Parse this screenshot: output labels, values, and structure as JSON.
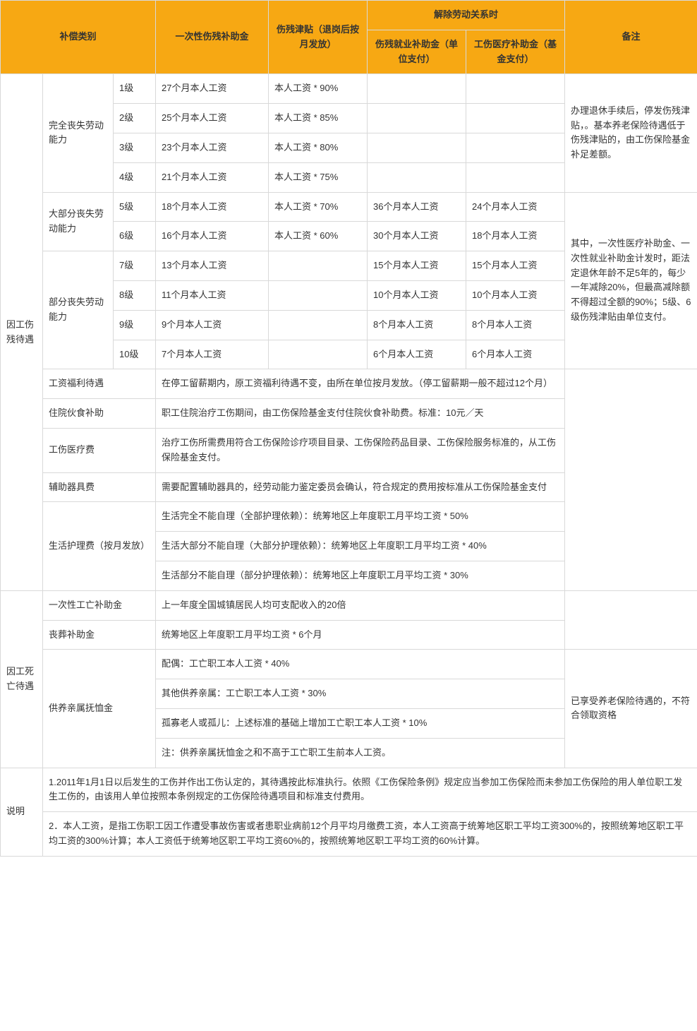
{
  "header": {
    "col1": "补偿类别",
    "col2": "一次性伤残补助金",
    "col3": "伤残津贴（退岗后按月发放）",
    "col4_group": "解除劳动关系时",
    "col4a": "伤残就业补助金（单位支付）",
    "col4b": "工伤医疗补助金（基金支付）",
    "col5": "备注"
  },
  "section1": {
    "title": "因工伤残待遇",
    "group1": {
      "name": "完全丧失劳动能力"
    },
    "group2": {
      "name": "大部分丧失劳动能力"
    },
    "group3": {
      "name": "部分丧失劳动能力"
    },
    "rows": {
      "r1": {
        "lv": "1级",
        "a": "27个月本人工资",
        "b": "本人工资 * 90%",
        "c": "",
        "d": ""
      },
      "r2": {
        "lv": "2级",
        "a": "25个月本人工资",
        "b": "本人工资 * 85%",
        "c": "",
        "d": ""
      },
      "r3": {
        "lv": "3级",
        "a": "23个月本人工资",
        "b": "本人工资 * 80%",
        "c": "",
        "d": ""
      },
      "r4": {
        "lv": "4级",
        "a": "21个月本人工资",
        "b": "本人工资 * 75%",
        "c": "",
        "d": ""
      },
      "r5": {
        "lv": "5级",
        "a": "18个月本人工资",
        "b": "本人工资 * 70%",
        "c": "36个月本人工资",
        "d": "24个月本人工资"
      },
      "r6": {
        "lv": "6级",
        "a": "16个月本人工资",
        "b": "本人工资 * 60%",
        "c": "30个月本人工资",
        "d": "18个月本人工资"
      },
      "r7": {
        "lv": "7级",
        "a": "13个月本人工资",
        "b": "",
        "c": "15个月本人工资",
        "d": "15个月本人工资"
      },
      "r8": {
        "lv": "8级",
        "a": "11个月本人工资",
        "b": "",
        "c": "10个月本人工资",
        "d": "10个月本人工资"
      },
      "r9": {
        "lv": "9级",
        "a": "9个月本人工资",
        "b": "",
        "c": "8个月本人工资",
        "d": "8个月本人工资"
      },
      "r10": {
        "lv": "10级",
        "a": "7个月本人工资",
        "b": "",
        "c": "6个月本人工资",
        "d": "6个月本人工资"
      }
    },
    "remark1": "办理退休手续后，停发伤残津贴，。基本养老保险待遇低于伤残津贴的，由工伤保险基金补足差额。",
    "remark2": "其中，一次性医疗补助金、一次性就业补助金计发时，距法定退休年龄不足5年的，每少一年减除20%，但最高减除额不得超过全额的90%；5级、6级伤残津贴由单位支付。",
    "extra": {
      "e1": {
        "label": "工资福利待遇",
        "text": "在停工留薪期内，原工资福利待遇不变，由所在单位按月发放。（停工留薪期一般不超过12个月）"
      },
      "e2": {
        "label": "住院伙食补助",
        "text": "职工住院治疗工伤期间，由工伤保险基金支付住院伙食补助费。标准：10元／天"
      },
      "e3": {
        "label": "工伤医疗费",
        "text": "治疗工伤所需费用符合工伤保险诊疗项目目录、工伤保险药品目录、工伤保险服务标准的，从工伤保险基金支付。"
      },
      "e4": {
        "label": "辅助器具费",
        "text": "需要配置辅助器具的，经劳动能力鉴定委员会确认，符合规定的费用按标准从工伤保险基金支付"
      },
      "e5": {
        "label": "生活护理费（按月发放）",
        "t1": "生活完全不能自理（全部护理依赖）：统筹地区上年度职工月平均工资 * 50%",
        "t2": "生活大部分不能自理（大部分护理依赖）：统筹地区上年度职工月平均工资 * 40%",
        "t3": "生活部分不能自理（部分护理依赖）：统筹地区上年度职工月平均工资 * 30%"
      }
    }
  },
  "section2": {
    "title": "因工死亡待遇",
    "r1": {
      "label": "一次性工亡补助金",
      "text": "上一年度全国城镇居民人均可支配收入的20倍"
    },
    "r2": {
      "label": "丧葬补助金",
      "text": "统筹地区上年度职工月平均工资 * 6个月"
    },
    "r3": {
      "label": "供养亲属抚恤金",
      "t1": "配偶：工亡职工本人工资 * 40%",
      "t2": "其他供养亲属：工亡职工本人工资 * 30%",
      "t3": "孤寡老人或孤儿：上述标准的基础上增加工亡职工本人工资 * 10%",
      "t4": "注：供养亲属抚恤金之和不高于工亡职工生前本人工资。"
    },
    "remark": "已享受养老保险待遇的，不符合领取资格"
  },
  "notes": {
    "title": "说明",
    "n1": "1.2011年1月1日以后发生的工伤并作出工伤认定的，其待遇按此标准执行。依照《工伤保险条例》规定应当参加工伤保险而未参加工伤保险的用人单位职工发生工伤的，由该用人单位按照本条例规定的工伤保险待遇项目和标准支付费用。",
    "n2": "2．本人工资，是指工伤职工因工作遭受事故伤害或者患职业病前12个月平均月缴费工资，本人工资高于统筹地区职工平均工资300%的，按照统筹地区职工平均工资的300%计算；本人工资低于统筹地区职工平均工资60%的，按照统筹地区职工平均工资的60%计算。"
  },
  "style": {
    "header_bg": "#f7a813",
    "border_color": "#d9d9d9",
    "text_color": "#333333",
    "font_size": 13
  }
}
